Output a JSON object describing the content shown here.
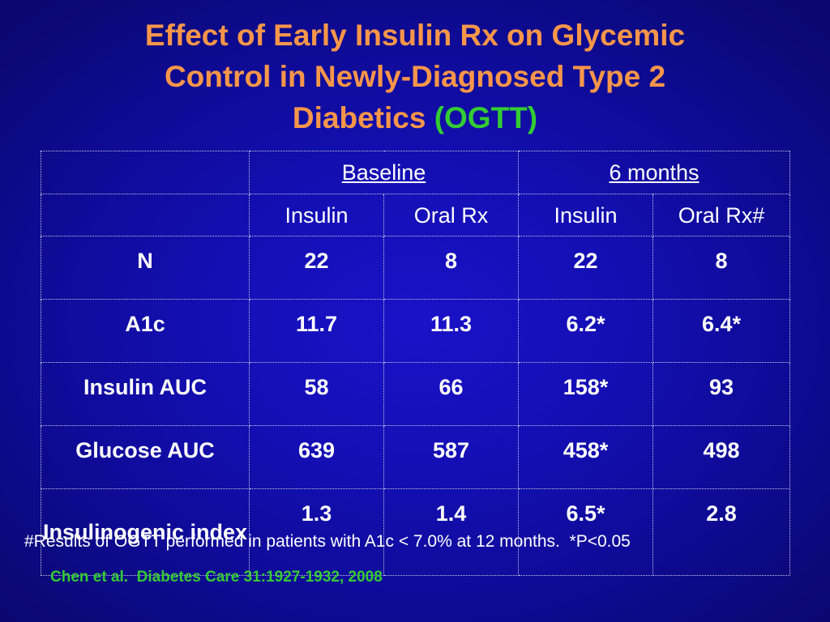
{
  "title": {
    "line1": "Effect of Early Insulin Rx on Glycemic",
    "line2": "Control in Newly-Diagnosed Type 2",
    "line3_main": "Diabetics ",
    "line3_accent": "(OGTT)"
  },
  "table": {
    "group_headers": [
      "Baseline",
      "6 months"
    ],
    "sub_headers": [
      "Insulin",
      "Oral Rx",
      "Insulin",
      "Oral Rx#"
    ],
    "rows": [
      {
        "label": "N",
        "values": [
          "22",
          "8",
          "22",
          "8"
        ]
      },
      {
        "label": "A1c",
        "values": [
          "11.7",
          "11.3",
          "6.2*",
          "6.4*"
        ]
      },
      {
        "label": "Insulin AUC",
        "values": [
          "58",
          "66",
          "158*",
          "93"
        ]
      },
      {
        "label": "Glucose AUC",
        "values": [
          "639",
          "587",
          "458*",
          "498"
        ]
      },
      {
        "label": "Insulinogenic index",
        "values": [
          "1.3",
          "1.4",
          "6.5*",
          "2.8"
        ]
      }
    ]
  },
  "footnote": "#Results of OGTT performed in patients with A1c < 7.0% at 12 months.  *P<0.05",
  "citation": "Chen et al.  Diabetes Care 31:1927-1932, 2008",
  "colors": {
    "title": "#f7964a",
    "accent": "#33cc33",
    "background": "#140fb4",
    "text": "#ffffff"
  }
}
